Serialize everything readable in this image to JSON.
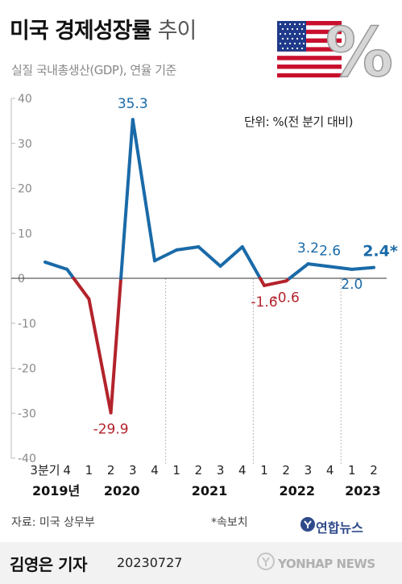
{
  "header": {
    "title_main": "미국 경제성장률",
    "title_sub": "추이",
    "subtitle": "실질 국내총생산(GDP), 연율 기준",
    "unit": "단위: %(전 분기 대비)",
    "percent_icon": "%"
  },
  "footer": {
    "source": "자료: 미국 상무부",
    "note": "*속보치",
    "reporter": "김영은 기자",
    "date": "20230727",
    "logo_text": "연합뉴스",
    "agency": "YONHAP NEWS"
  },
  "colors": {
    "positive": "#1a6aa8",
    "negative": "#b3232b",
    "axis": "#333333",
    "grid_text": "#888888"
  },
  "chart_data": {
    "type": "line",
    "title": "미국 경제성장률 추이",
    "subtitle": "실질 국내총생산(GDP), 연율 기준",
    "ylabel": "",
    "ylim": [
      -40,
      40
    ],
    "yticks": [
      40,
      30,
      20,
      10,
      0,
      -10,
      -20,
      -30,
      -40
    ],
    "categories": [
      "2019 Q3",
      "2019 Q4",
      "2020 Q1",
      "2020 Q2",
      "2020 Q3",
      "2020 Q4",
      "2021 Q1",
      "2021 Q2",
      "2021 Q3",
      "2021 Q4",
      "2022 Q1",
      "2022 Q2",
      "2022 Q3",
      "2022 Q4",
      "2023 Q1",
      "2023 Q2"
    ],
    "quarter_labels": [
      "3분기",
      "4",
      "1",
      "2",
      "3",
      "4",
      "1",
      "2",
      "3",
      "4",
      "1",
      "2",
      "3",
      "4",
      "1",
      "2"
    ],
    "year_labels": [
      {
        "label": "2019년",
        "index": 0.5
      },
      {
        "label": "2020",
        "index": 3.5
      },
      {
        "label": "2021",
        "index": 7.5
      },
      {
        "label": "2022",
        "index": 11.5
      },
      {
        "label": "2023",
        "index": 14.5
      }
    ],
    "values": [
      3.6,
      2.0,
      -4.6,
      -29.9,
      35.3,
      3.9,
      6.3,
      7.0,
      2.7,
      7.0,
      -1.6,
      -0.6,
      3.2,
      2.6,
      2.0,
      2.4
    ],
    "data_labels": [
      {
        "index": 3,
        "text": "-29.9",
        "color": "negative"
      },
      {
        "index": 4,
        "text": "35.3",
        "color": "positive"
      },
      {
        "index": 10,
        "text": "-1.6",
        "color": "negative"
      },
      {
        "index": 11,
        "text": "-0.6",
        "color": "negative"
      },
      {
        "index": 12,
        "text": "3.2",
        "color": "positive"
      },
      {
        "index": 13,
        "text": "2.6",
        "color": "positive"
      },
      {
        "index": 14,
        "text": "2.0",
        "color": "positive"
      },
      {
        "index": 15,
        "text": "2.4*",
        "color": "positive"
      }
    ],
    "year_separators_after_index": [
      5,
      9,
      13
    ],
    "grid": false
  }
}
